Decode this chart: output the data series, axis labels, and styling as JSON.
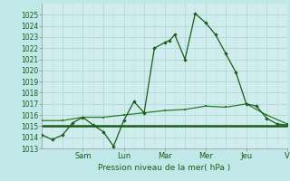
{
  "background_color": "#c0e8e8",
  "plot_bg_color": "#d0ecec",
  "grid_color_major": "#a8d8d8",
  "grid_color_minor": "#b8e0e0",
  "line_color_dark": "#1a5c1a",
  "line_color_med": "#2d7a2d",
  "xlabel": "Pression niveau de la mer( hPa )",
  "ylim": [
    1013,
    1026
  ],
  "xlim": [
    0,
    48
  ],
  "yticks": [
    1013,
    1014,
    1015,
    1016,
    1017,
    1018,
    1019,
    1020,
    1021,
    1022,
    1023,
    1024,
    1025
  ],
  "day_labels": [
    "Sam",
    "Lun",
    "Mar",
    "Mer",
    "Jeu",
    "V"
  ],
  "day_tick_x": [
    8,
    16,
    24,
    32,
    40,
    48
  ],
  "series1_x": [
    0,
    2,
    4,
    6,
    8,
    10,
    12,
    14,
    16,
    18,
    20,
    22,
    24,
    25,
    26,
    28,
    30,
    32,
    34,
    36,
    38,
    40,
    42,
    44,
    46,
    48
  ],
  "series1_y": [
    1014.2,
    1013.8,
    1014.2,
    1015.3,
    1015.8,
    1015.1,
    1014.5,
    1013.2,
    1015.5,
    1017.2,
    1016.2,
    1022.0,
    1022.5,
    1022.7,
    1023.2,
    1021.0,
    1025.1,
    1024.3,
    1023.2,
    1021.5,
    1019.8,
    1017.0,
    1016.8,
    1015.7,
    1015.2,
    1015.1
  ],
  "series2_x": [
    0,
    4,
    8,
    12,
    16,
    20,
    24,
    28,
    32,
    36,
    40,
    44,
    48
  ],
  "series2_y": [
    1015.5,
    1015.5,
    1015.8,
    1015.8,
    1016.0,
    1016.2,
    1016.4,
    1016.5,
    1016.8,
    1016.7,
    1017.0,
    1016.0,
    1015.2
  ],
  "series3_x": [
    0,
    8,
    16,
    24,
    32,
    40,
    48
  ],
  "series3_y": [
    1015.0,
    1015.0,
    1015.0,
    1015.0,
    1015.0,
    1015.0,
    1015.0
  ]
}
